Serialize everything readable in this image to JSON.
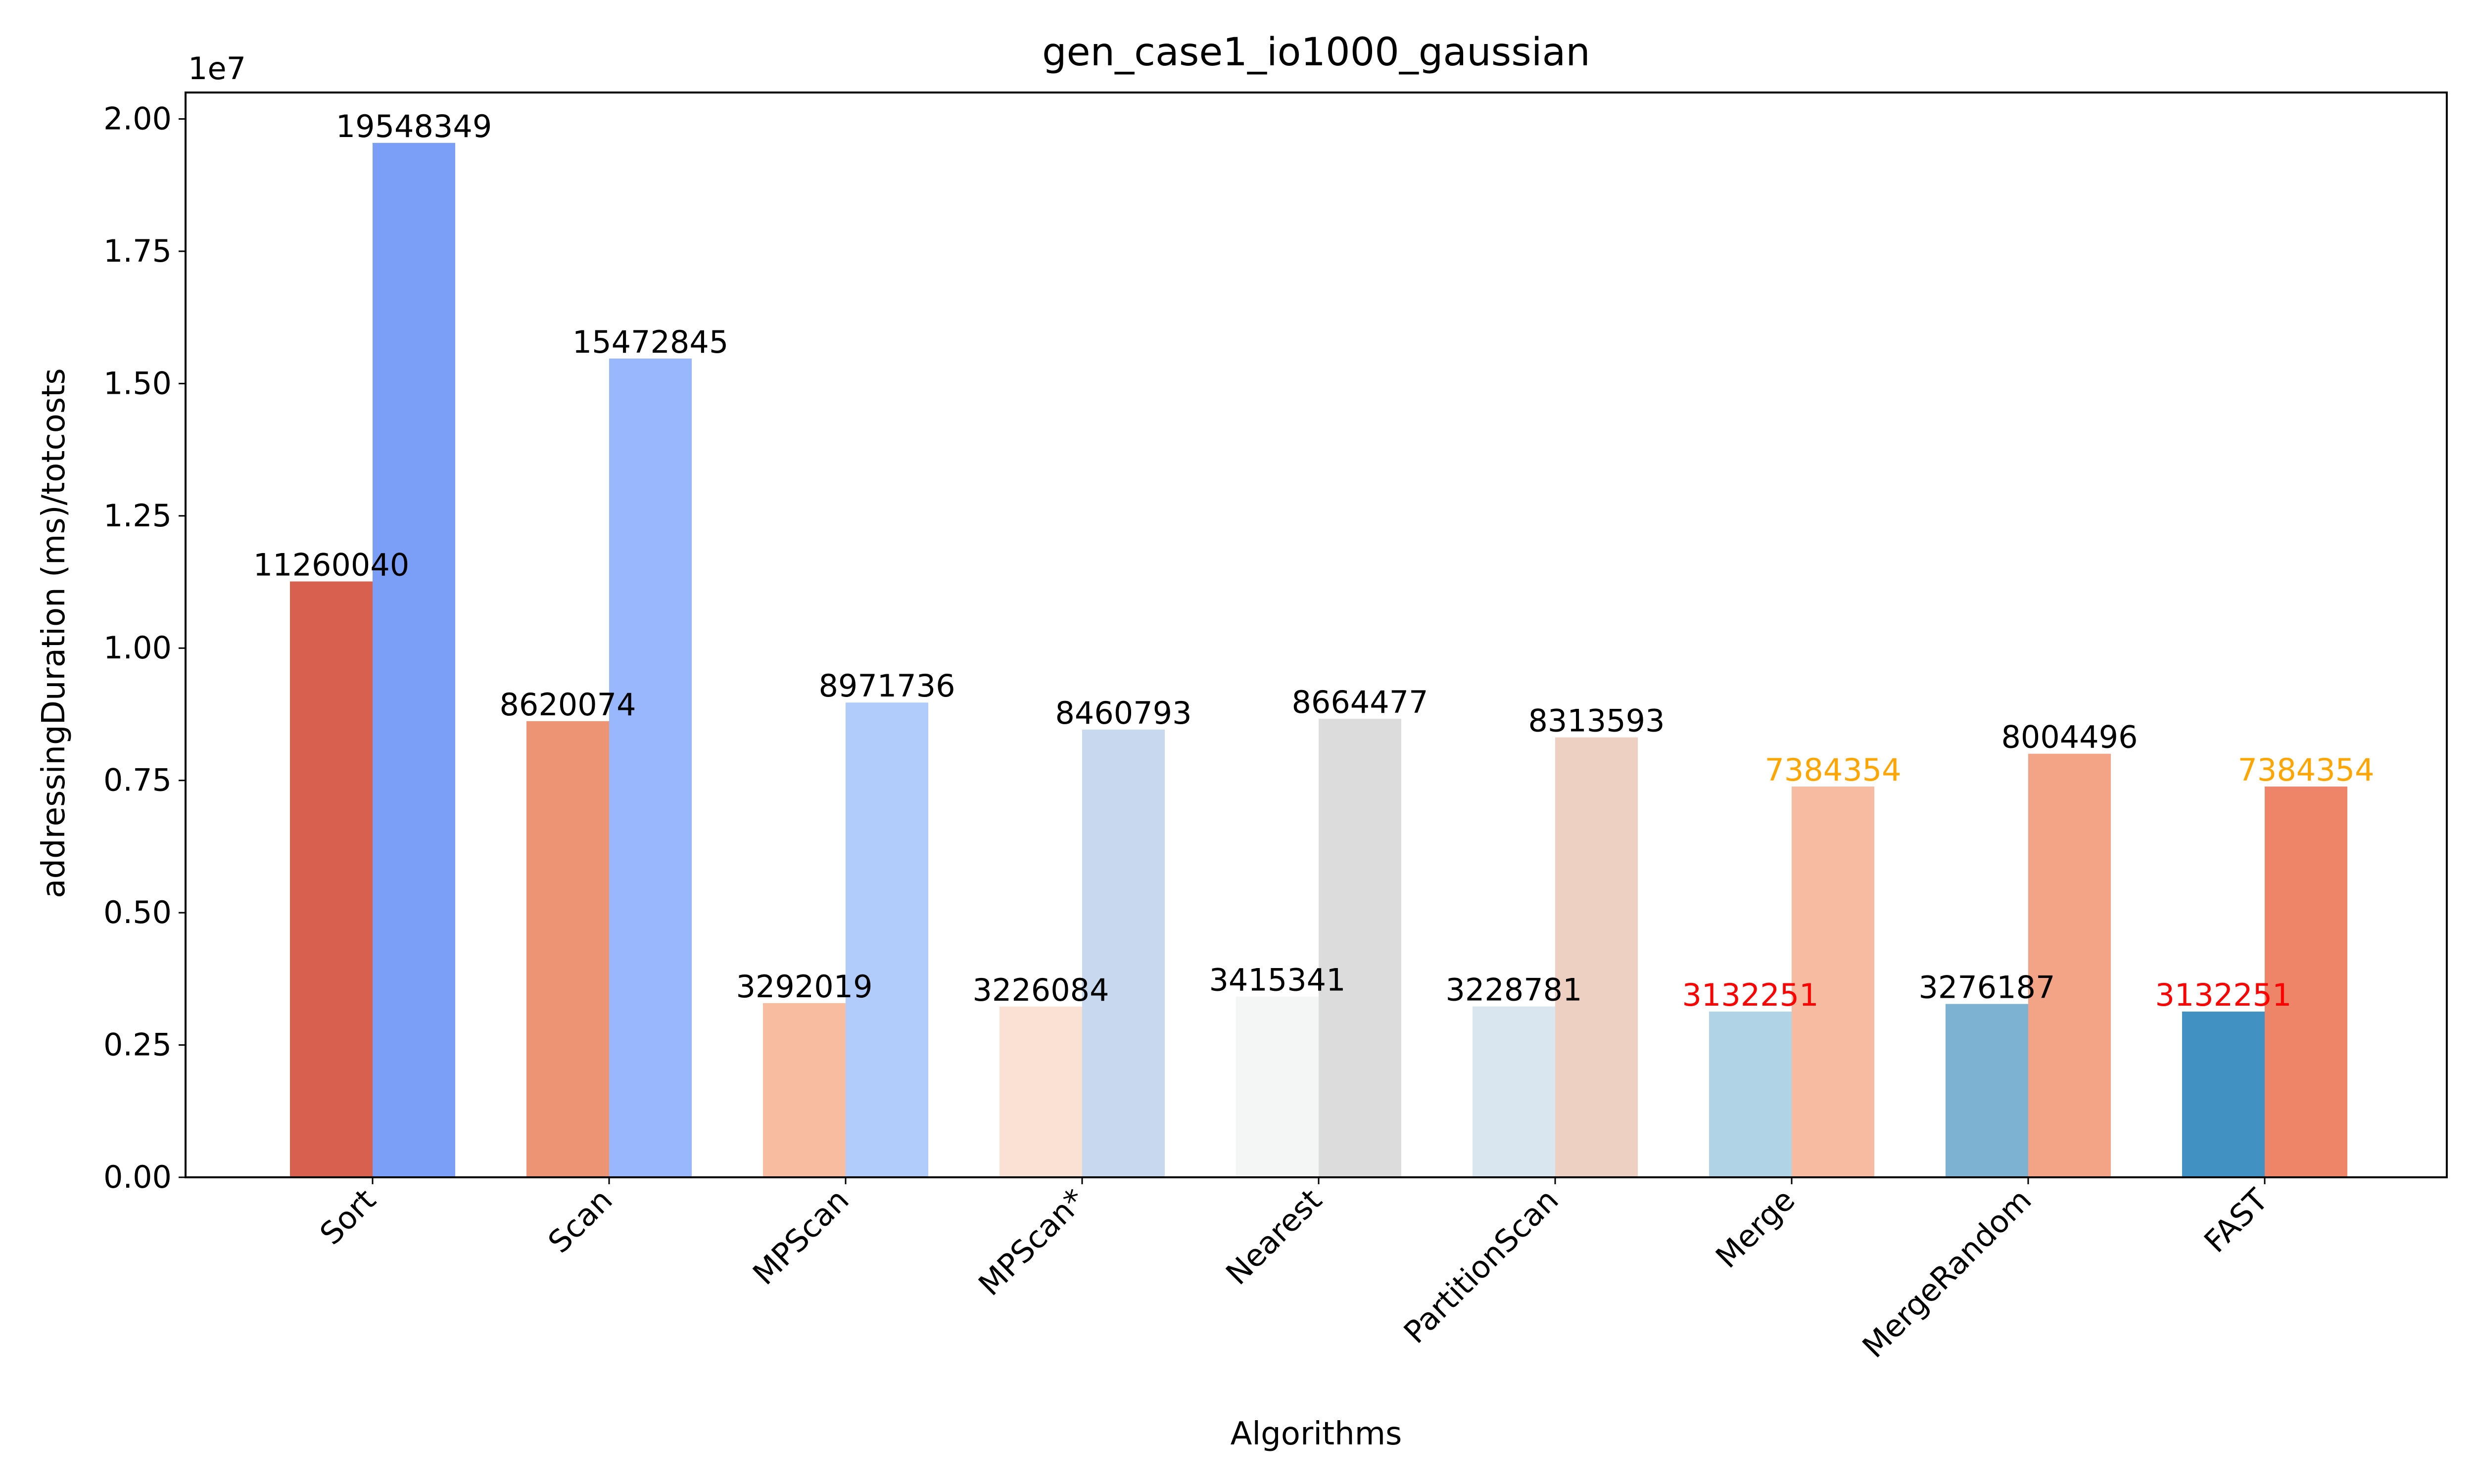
{
  "chart_data": {
    "type": "bar",
    "title": "gen_case1_io1000_gaussian",
    "xlabel": "Algorithms",
    "ylabel": "addressingDuration (ms)/totcosts",
    "offset_text": "1e7",
    "ylim": [
      0,
      20500000
    ],
    "yticks": [
      "0.00",
      "0.25",
      "0.50",
      "0.75",
      "1.00",
      "1.25",
      "1.50",
      "1.75",
      "2.00"
    ],
    "ytick_values": [
      0,
      2500000,
      5000000,
      7500000,
      10000000,
      12500000,
      15000000,
      17500000,
      20000000
    ],
    "grid": false,
    "categories": [
      "Sort",
      "Scan",
      "MPScan",
      "MPScan*",
      "Nearest",
      "PartitionScan",
      "Merge",
      "MergeRandom",
      "FAST"
    ],
    "series": [
      {
        "values": [
          11260040,
          8620074,
          3292019,
          3226084,
          3415341,
          3228781,
          3132251,
          3276187,
          3132251
        ],
        "colors": [
          "#d8604f",
          "#ec9474",
          "#f8bca1",
          "#fae1d4",
          "#f4f6f5",
          "#d9e6f0",
          "#b0d3e6",
          "#7db2d2",
          "#4191c2"
        ],
        "label_colors": [
          "#000000",
          "#000000",
          "#000000",
          "#000000",
          "#000000",
          "#000000",
          "#ff0000",
          "#000000",
          "#ff0000"
        ]
      },
      {
        "values": [
          19548349,
          15472845,
          8971736,
          8460793,
          8664477,
          8313593,
          7384354,
          8004496,
          7384354
        ],
        "colors": [
          "#7b9ff7",
          "#98b7fd",
          "#b1cbfb",
          "#c8d8ef",
          "#dcdcdc",
          "#edd0c2",
          "#f6bba1",
          "#f3a386",
          "#ee8569"
        ],
        "label_colors": [
          "#000000",
          "#000000",
          "#000000",
          "#000000",
          "#000000",
          "#000000",
          "#ffa500",
          "#000000",
          "#ffa500"
        ]
      }
    ]
  }
}
